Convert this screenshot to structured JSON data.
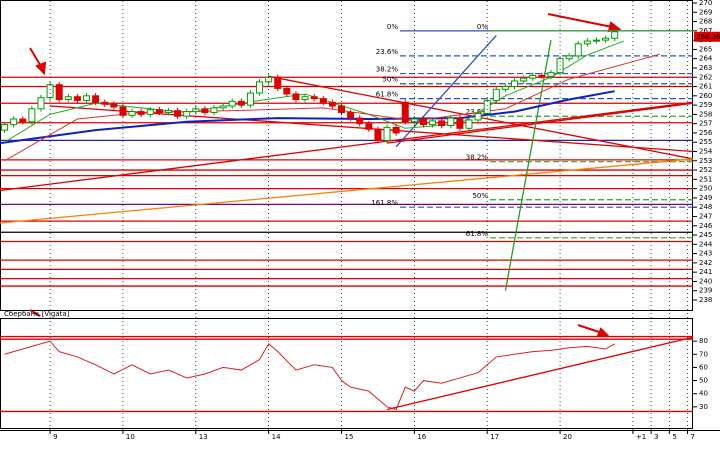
{
  "chart_data": [
    {
      "type": "candlestick",
      "xlim": [
        -0.5,
        75.6
      ],
      "ylim": [
        238,
        270
      ],
      "yticks": [
        238,
        239,
        240,
        241,
        242,
        243,
        244,
        245,
        246,
        247,
        248,
        249,
        250,
        251,
        252,
        253,
        254,
        255,
        256,
        257,
        258,
        259,
        260,
        261,
        262,
        263,
        264,
        265,
        266,
        267,
        268,
        269,
        270
      ],
      "up_color": "#00a000",
      "down_color": "#e00000",
      "open": [
        256.3,
        256.9,
        257.5,
        257.2,
        258.6,
        259.8,
        261.2,
        259.6,
        259.9,
        259.5,
        260.0,
        259.3,
        259.1,
        258.8,
        257.9,
        258.3,
        258.0,
        258.5,
        258.2,
        258.4,
        257.8,
        258.3,
        258.6,
        258.2,
        258.7,
        258.9,
        259.4,
        259.0,
        260.3,
        261.5,
        262.0,
        260.8,
        260.2,
        259.6,
        259.9,
        259.7,
        259.3,
        258.9,
        258.2,
        257.6,
        257.0,
        256.4,
        255.2,
        256.6,
        259.3,
        257.2,
        257.5,
        256.9,
        257.3,
        256.8,
        257.6,
        256.5,
        257.4,
        258.1,
        259.5,
        260.7,
        261.0,
        261.6,
        261.9,
        262.2,
        262.1,
        262.5,
        264.0,
        264.3,
        265.6,
        265.9,
        266.0,
        266.2
      ],
      "high": [
        257.2,
        257.8,
        257.8,
        258.9,
        260.1,
        261.5,
        261.5,
        260.2,
        260.2,
        260.3,
        260.3,
        259.6,
        259.4,
        259.1,
        258.6,
        258.6,
        258.8,
        258.8,
        258.7,
        258.7,
        258.6,
        258.9,
        258.9,
        259.0,
        259.2,
        259.7,
        259.7,
        260.6,
        261.8,
        262.3,
        262.3,
        261.1,
        260.5,
        260.2,
        260.2,
        260.0,
        259.6,
        259.2,
        258.5,
        257.9,
        257.3,
        256.7,
        256.9,
        256.9,
        259.6,
        257.8,
        257.8,
        257.6,
        257.6,
        257.9,
        257.9,
        257.7,
        258.4,
        259.8,
        261.0,
        261.3,
        261.9,
        262.2,
        262.5,
        262.5,
        262.8,
        264.3,
        264.6,
        265.9,
        266.2,
        266.3,
        266.5,
        267.2
      ],
      "low": [
        256.0,
        256.6,
        256.9,
        256.9,
        258.3,
        259.5,
        259.3,
        259.3,
        259.2,
        259.2,
        259.0,
        258.8,
        258.5,
        257.6,
        257.6,
        257.7,
        257.7,
        257.9,
        257.9,
        257.5,
        257.5,
        258.0,
        257.9,
        257.9,
        258.4,
        258.6,
        258.7,
        258.7,
        260.0,
        261.2,
        260.5,
        259.9,
        259.3,
        259.3,
        259.4,
        259.0,
        258.6,
        257.9,
        257.3,
        256.7,
        256.1,
        254.9,
        254.9,
        255.7,
        256.9,
        256.9,
        256.6,
        256.6,
        256.5,
        256.5,
        256.2,
        256.2,
        257.1,
        257.8,
        259.2,
        260.4,
        260.7,
        261.3,
        261.6,
        261.8,
        261.8,
        262.2,
        263.7,
        264.0,
        265.3,
        265.6,
        265.7,
        265.9
      ],
      "close": [
        256.9,
        257.5,
        257.2,
        258.6,
        259.8,
        261.2,
        259.6,
        259.9,
        259.5,
        260.0,
        259.3,
        259.1,
        258.8,
        257.9,
        258.3,
        258.0,
        258.5,
        258.2,
        258.4,
        257.8,
        258.3,
        258.6,
        258.2,
        258.7,
        258.9,
        259.4,
        259.0,
        260.3,
        261.5,
        262.0,
        260.8,
        260.2,
        259.6,
        259.9,
        259.7,
        259.3,
        258.9,
        258.2,
        257.6,
        257.0,
        256.4,
        255.2,
        256.6,
        256.0,
        257.2,
        257.5,
        256.9,
        257.3,
        256.8,
        257.6,
        256.5,
        257.4,
        258.1,
        259.5,
        260.7,
        261.0,
        261.6,
        261.9,
        262.2,
        262.1,
        262.5,
        264.0,
        264.3,
        265.6,
        265.9,
        266.0,
        266.2,
        266.9
      ],
      "last_price": 266.36,
      "series": [
        {
          "color": "#1020c0",
          "x": [
            -0.5,
            10,
            20,
            30,
            40,
            50,
            56,
            62,
            67
          ],
          "values": [
            254.9,
            256.3,
            257.2,
            257.6,
            257.5,
            257.6,
            258.3,
            259.6,
            260.5
          ]
        },
        {
          "color": "#20b020",
          "x": [
            0,
            5,
            10,
            20,
            28,
            33,
            40,
            44,
            50,
            55,
            60,
            64,
            68
          ],
          "values": [
            255,
            258,
            259.2,
            258.2,
            259.5,
            260.2,
            258,
            256.5,
            257,
            260,
            262,
            264.4,
            265.9
          ]
        },
        {
          "color": "#e03030",
          "x": [
            0,
            8,
            15,
            25,
            35,
            45,
            55,
            62,
            72
          ],
          "values": [
            253,
            257.5,
            258.2,
            258.4,
            258.7,
            257.3,
            258.6,
            261.8,
            264.5
          ]
        }
      ],
      "hlines": [
        {
          "value": 262.0,
          "color": "#e00000"
        },
        {
          "value": 261.0,
          "color": "#e00000"
        },
        {
          "value": 259.2,
          "color": "#e00000"
        },
        {
          "value": 257.1,
          "color": "#e00000"
        },
        {
          "value": 255.2,
          "color": "#2020a0"
        },
        {
          "value": 253.1,
          "color": "#e00000"
        },
        {
          "value": 252.0,
          "color": "#e00000"
        },
        {
          "value": 251.4,
          "color": "#e00000"
        },
        {
          "value": 250.0,
          "color": "#e00000"
        },
        {
          "value": 248.3,
          "color": "#800080"
        },
        {
          "value": 246.5,
          "color": "#e00000"
        },
        {
          "value": 245.3,
          "color": "#000000"
        },
        {
          "value": 244.3,
          "color": "#e00000"
        },
        {
          "value": 242.3,
          "color": "#e00000"
        },
        {
          "value": 241.3,
          "color": "#e00000"
        },
        {
          "value": 240.3,
          "color": "#e00000"
        },
        {
          "value": 239.5,
          "color": "#e00000"
        }
      ],
      "trendlines": [
        {
          "color": "#e00000",
          "x": [
            29,
            75.6
          ],
          "values": [
            262.1,
            253.2
          ]
        },
        {
          "color": "#e00000",
          "x": [
            -0.5,
            75.6
          ],
          "values": [
            249.8,
            259.3
          ]
        },
        {
          "color": "#ff8000",
          "x": [
            -0.5,
            75.6
          ],
          "values": [
            246.3,
            253.2
          ]
        },
        {
          "color": "#e00000",
          "x": [
            42,
            75.6
          ],
          "values": [
            254.9,
            259.2
          ]
        },
        {
          "color": "#e00000",
          "x": [
            5,
            75.6
          ],
          "values": [
            258.9,
            254.0
          ]
        },
        {
          "color": "#3050c0",
          "x": [
            43,
            54
          ],
          "values": [
            254.5,
            266.5
          ]
        },
        {
          "color": "#20a020",
          "x": [
            55,
            60
          ],
          "values": [
            239.0,
            266.0
          ]
        }
      ],
      "fib_levels": [
        {
          "color": "#3050c0",
          "levels": [
            {
              "label": "0%",
              "value": 267.0
            },
            {
              "label": "23.6%",
              "value": 264.3
            },
            {
              "label": "38.2%",
              "value": 262.4
            },
            {
              "label": "50%",
              "value": 261.3
            },
            {
              "label": "61.8%",
              "value": 259.7
            },
            {
              "label": "161.8%",
              "value": 248.0
            }
          ]
        },
        {
          "color": "#30a030",
          "levels": [
            {
              "label": "0%",
              "value": 267.0
            },
            {
              "label": "23.6%",
              "value": 257.8
            },
            {
              "label": "38.2%",
              "value": 252.9
            },
            {
              "label": "50%",
              "value": 248.8
            },
            {
              "label": "61.8%",
              "value": 244.7
            }
          ]
        }
      ]
    },
    {
      "type": "line",
      "title": "Сбербанк [Vigata]",
      "xlim": [
        -0.5,
        75.6
      ],
      "ylim": [
        20,
        90
      ],
      "yticks": [
        30,
        40,
        50,
        60,
        70,
        80
      ],
      "xticks": [
        {
          "value": 5,
          "label": "9"
        },
        {
          "value": 13,
          "label": "10"
        },
        {
          "value": 21,
          "label": "13"
        },
        {
          "value": 29,
          "label": "14"
        },
        {
          "value": 37,
          "label": "15"
        },
        {
          "value": 45,
          "label": "16"
        },
        {
          "value": 53,
          "label": "17"
        },
        {
          "value": 61,
          "label": "20"
        },
        {
          "value": 69,
          "label": "+1"
        },
        {
          "value": 71,
          "label": "3"
        },
        {
          "value": 73,
          "label": "5"
        },
        {
          "value": 75,
          "label": "7"
        }
      ],
      "series": [
        {
          "color": "#e02020",
          "x": [
            0,
            3,
            5,
            6,
            8,
            10,
            12,
            14,
            16,
            18,
            20,
            22,
            24,
            26,
            28,
            29,
            30,
            32,
            34,
            36,
            37,
            38,
            40,
            41,
            42,
            43,
            44,
            45,
            46,
            48,
            50,
            52,
            54,
            56,
            58,
            60,
            62,
            64,
            66,
            67
          ],
          "values": [
            70,
            76,
            80,
            72,
            68,
            62,
            55,
            62,
            55,
            58,
            52,
            55,
            60,
            58,
            66,
            78,
            72,
            58,
            62,
            60,
            50,
            45,
            42,
            36,
            30,
            28,
            45,
            42,
            50,
            48,
            52,
            56,
            68,
            70,
            72,
            73,
            75,
            76,
            74,
            78
          ]
        }
      ],
      "hlines": [
        {
          "value": 83.5,
          "color": "#e00000"
        },
        {
          "value": 81.5,
          "color": "#e00000"
        },
        {
          "value": 26.5,
          "color": "#e00000"
        }
      ],
      "trendlines": [
        {
          "color": "#e00000",
          "x": [
            42,
            75.6
          ],
          "values": [
            28,
            83
          ]
        }
      ]
    }
  ]
}
